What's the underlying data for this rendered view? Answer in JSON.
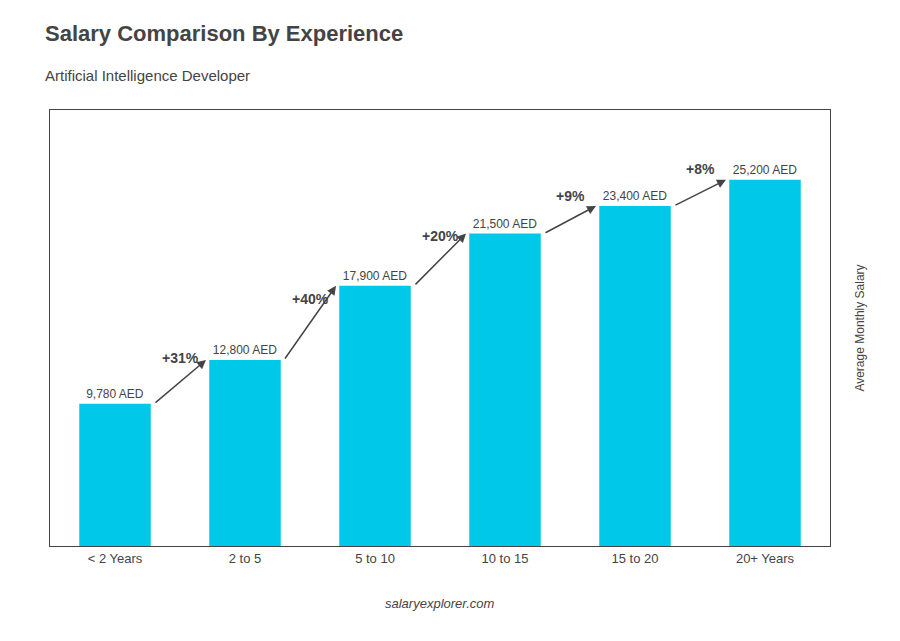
{
  "chart_data": {
    "type": "bar",
    "title": "Salary Comparison By Experience",
    "subtitle": "Artificial Intelligence Developer",
    "categories": [
      "< 2 Years",
      "2 to 5",
      "5 to 10",
      "10 to 15",
      "15 to 20",
      "20+ Years"
    ],
    "values": [
      9780,
      12800,
      17900,
      21500,
      23400,
      25200
    ],
    "value_labels": [
      "9,780 AED",
      "12,800 AED",
      "17,900 AED",
      "21,500 AED",
      "23,400 AED",
      "25,200 AED"
    ],
    "data_labels": true,
    "color": "#00c8e8",
    "annotations": [
      "+31%",
      "+40%",
      "+20%",
      "+9%",
      "+8%"
    ],
    "ylabel": "Average Monthly Salary",
    "footer": "salaryexplorer.com",
    "ylim": [
      0,
      30000
    ],
    "tick_labels": "x",
    "grid": false
  }
}
